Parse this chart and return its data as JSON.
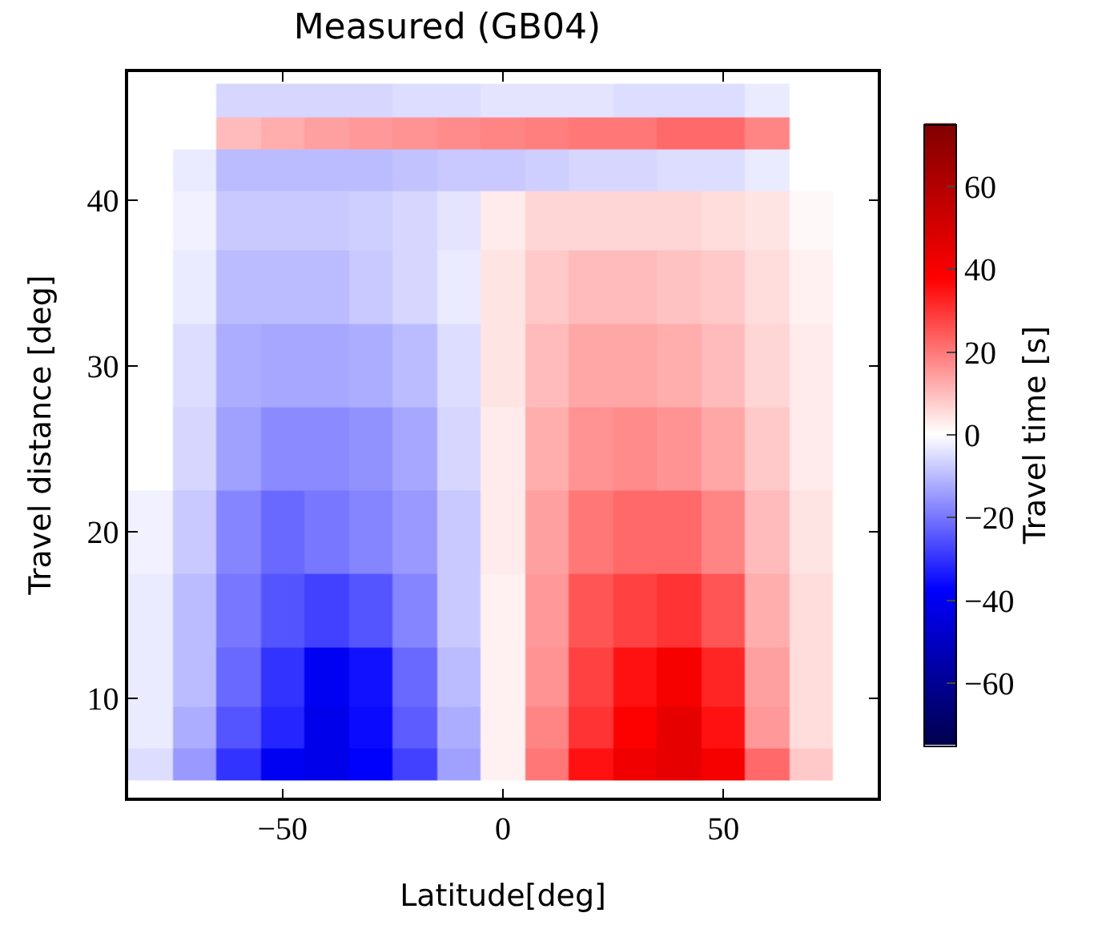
{
  "chart_data": {
    "type": "heatmap",
    "title": "Measured (GB04)",
    "xlabel": "Latitude[deg]",
    "ylabel": "Travel distance [deg]",
    "clabel": "Travel time [s]",
    "x": [
      -80,
      -70,
      -60,
      -50,
      -40,
      -30,
      -20,
      -10,
      0,
      10,
      20,
      30,
      40,
      50,
      60,
      70,
      80
    ],
    "y": [
      46,
      44,
      42,
      39,
      35,
      30,
      25,
      20,
      15,
      11,
      8,
      6
    ],
    "cells": [
      [
        0,
        0,
        -6,
        -6,
        -6,
        -6,
        -5,
        -5,
        -4,
        -4,
        -4,
        -5,
        -5,
        -5,
        -3,
        0,
        0
      ],
      [
        0,
        0,
        10,
        12,
        14,
        15,
        16,
        17,
        18,
        19,
        20,
        20,
        22,
        22,
        18,
        0,
        0
      ],
      [
        0,
        -3,
        -10,
        -10,
        -10,
        -10,
        -9,
        -8,
        -8,
        -7,
        -6,
        -6,
        -5,
        -5,
        -3,
        0,
        0
      ],
      [
        0,
        -2,
        -8,
        -8,
        -8,
        -7,
        -6,
        -4,
        3,
        6,
        6,
        6,
        6,
        5,
        4,
        1,
        0
      ],
      [
        0,
        -3,
        -10,
        -10,
        -10,
        -8,
        -6,
        -3,
        4,
        8,
        10,
        10,
        9,
        8,
        5,
        2,
        0
      ],
      [
        0,
        -5,
        -12,
        -13,
        -13,
        -12,
        -10,
        -5,
        4,
        10,
        13,
        13,
        12,
        10,
        6,
        3,
        0
      ],
      [
        0,
        -6,
        -14,
        -17,
        -17,
        -16,
        -13,
        -6,
        3,
        12,
        16,
        17,
        16,
        13,
        8,
        3,
        0
      ],
      [
        -2,
        -8,
        -18,
        -22,
        -20,
        -18,
        -15,
        -8,
        3,
        14,
        20,
        22,
        22,
        18,
        10,
        4,
        0
      ],
      [
        -3,
        -10,
        -20,
        -25,
        -28,
        -25,
        -18,
        -8,
        2,
        15,
        25,
        28,
        30,
        25,
        12,
        5,
        0
      ],
      [
        -3,
        -10,
        -22,
        -30,
        -40,
        -35,
        -22,
        -10,
        2,
        16,
        28,
        35,
        40,
        32,
        14,
        5,
        0
      ],
      [
        -3,
        -12,
        -25,
        -32,
        -42,
        -36,
        -24,
        -12,
        2,
        18,
        30,
        38,
        45,
        35,
        15,
        5,
        0
      ],
      [
        -5,
        -15,
        -30,
        -40,
        -42,
        -38,
        -28,
        -14,
        2,
        20,
        35,
        42,
        45,
        40,
        22,
        8,
        0
      ]
    ],
    "xlim": [
      -85,
      85
    ],
    "xticks": [
      {
        "value": -50,
        "label": "−50"
      },
      0,
      50
    ],
    "ylim": [
      4,
      47.7
    ],
    "yticks": [
      10,
      20,
      30,
      40
    ],
    "clim": [
      -75,
      75
    ],
    "cticks": [
      {
        "value": -60,
        "label": "−60"
      },
      {
        "value": -40,
        "label": "−40"
      },
      {
        "value": -20,
        "label": "−20"
      },
      0,
      20,
      40,
      60
    ],
    "grid": false
  }
}
